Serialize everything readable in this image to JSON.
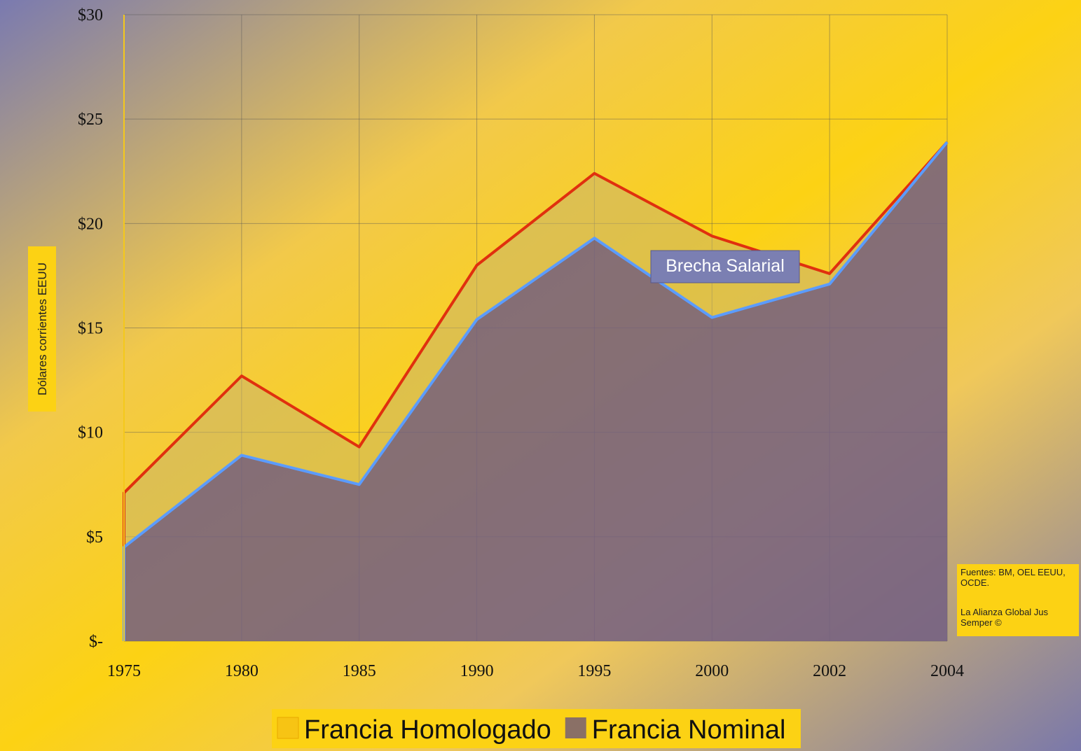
{
  "chart_data": {
    "type": "area",
    "y_axis_label": "Dólares corrientes EEUU",
    "annotation": "Brecha Salarial",
    "source": [
      "Fuentes: BM, OEL EEUU, OCDE.",
      "La Alianza Global Jus Semper ©"
    ],
    "categories": [
      "1975",
      "1980",
      "1985",
      "1990",
      "1995",
      "2000",
      "2002",
      "2004"
    ],
    "series": [
      {
        "name": "Francia Homologado",
        "color": "#e0300e",
        "fill": "rgba(200,180,110,0.55)",
        "legend_color": "#f7c414",
        "values": [
          7.1,
          12.7,
          9.3,
          18.0,
          22.4,
          19.4,
          17.6,
          23.9
        ]
      },
      {
        "name": "Francia Nominal",
        "color": "#5b9cff",
        "fill": "rgba(95,75,135,0.7)",
        "legend_color": "#8a7066",
        "values": [
          4.5,
          8.9,
          7.5,
          15.4,
          19.3,
          15.5,
          17.1,
          23.9
        ]
      }
    ],
    "ylim": [
      0,
      30
    ],
    "yticks": [
      {
        "value": 0,
        "label": "$-"
      },
      {
        "value": 5,
        "label": "$5"
      },
      {
        "value": 10,
        "label": "$10"
      },
      {
        "value": 15,
        "label": "$15"
      },
      {
        "value": 20,
        "label": "$20"
      },
      {
        "value": 25,
        "label": "$25"
      },
      {
        "value": 30,
        "label": "$30"
      }
    ],
    "grid": true
  }
}
